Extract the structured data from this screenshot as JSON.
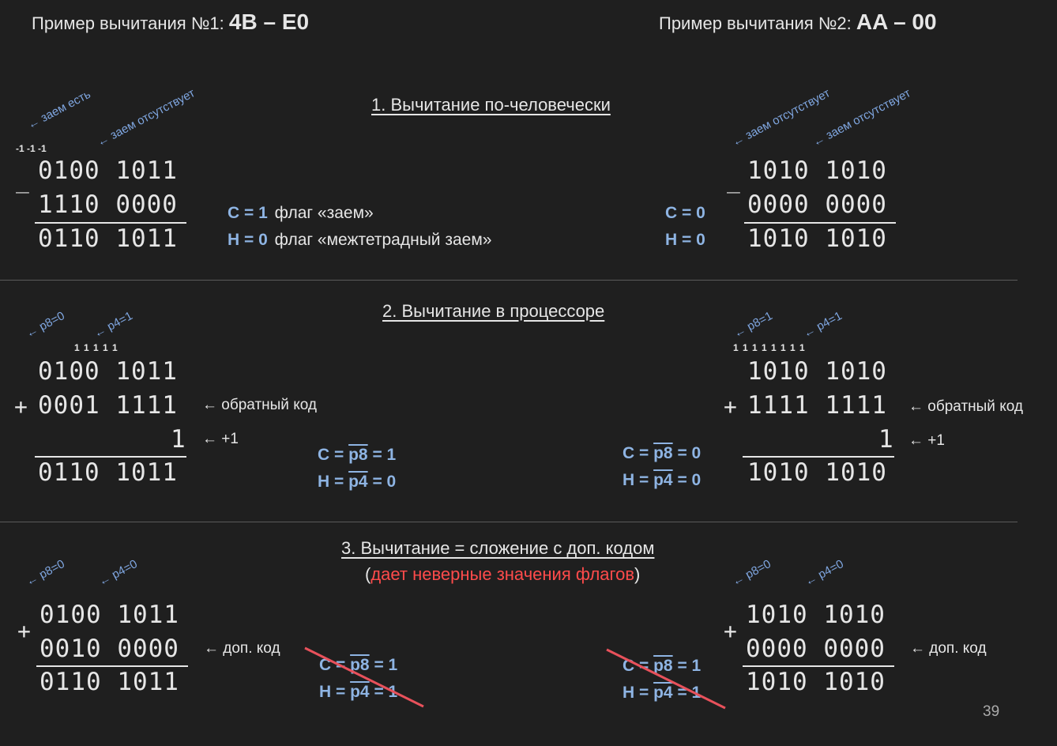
{
  "header": {
    "ex1_prefix": "Пример вычитания №1: ",
    "ex1_expr": "4B – E0",
    "ex2_prefix": "Пример вычитания №2: ",
    "ex2_expr": "AA – 00"
  },
  "section1": {
    "title": "1. Вычитание по-человечески",
    "left": {
      "ann_borrow": "← заем есть",
      "ann_noborrow": "← заем отсутствует",
      "borrow_marks": "-1  -1  -1",
      "sign": "_",
      "row1": "0100 1011",
      "row2": "1110 0000",
      "result": "0110 1011",
      "c_label": "C = 1",
      "c_text": "флаг «заем»",
      "h_label": "H = 0",
      "h_text": "флаг «межтетрадный заем»"
    },
    "right": {
      "ann1": "← заем отсутствует",
      "ann2": "← заем отсутствует",
      "sign": "_",
      "row1": "1010 1010",
      "row2": "0000 0000",
      "result": "1010 1010",
      "c_label": "C = 0",
      "h_label": "H = 0"
    }
  },
  "section2": {
    "title": "2. Вычитание в процессоре",
    "left": {
      "ann_p8": "← p8=0",
      "ann_p4": "← p4=1",
      "carries": "1 1   1 1 1",
      "row1": "0100 1011",
      "sign": "+",
      "row2": "0001 1111",
      "note_inverse": "← обратный код",
      "row3": "1",
      "note_plus1": "← +1",
      "result": "0110 1011",
      "c_pre": "C = ",
      "c_bar": "p8",
      "c_post": " = 1",
      "h_pre": "H = ",
      "h_bar": "p4",
      "h_post": " = 0"
    },
    "right": {
      "ann_p8": "← p8=1",
      "ann_p4": "← p4=1",
      "carries": "1 1 1 1 1   1 1 1",
      "row1": "1010 1010",
      "sign": "+",
      "row2": "1111 1111",
      "note_inverse": "← обратный код",
      "row3": "1",
      "note_plus1": "← +1",
      "result": "1010 1010",
      "c_pre": "C = ",
      "c_bar": "p8",
      "c_post": " = 0",
      "h_pre": "H = ",
      "h_bar": "p4",
      "h_post": " = 0"
    }
  },
  "section3": {
    "title": "3. Вычитание = сложение с доп. кодом",
    "subtitle_open": "(",
    "subtitle_red": "дает неверные значения флагов",
    "subtitle_close": ")",
    "left": {
      "ann_p8": "← p8=0",
      "ann_p4": "← p4=0",
      "sign": "+",
      "row1": "0100 1011",
      "row2": "0010 0000",
      "note_twos": "← доп. код",
      "result": "0110 1011",
      "c_pre": "C = ",
      "c_bar": "p8",
      "c_post": " = 1",
      "h_pre": "H = ",
      "h_bar": "p4",
      "h_post": " = 1"
    },
    "right": {
      "ann_p8": "← p8=0",
      "ann_p4": "← p4=0",
      "sign": "+",
      "row1": "1010 1010",
      "row2": "0000 0000",
      "note_twos": "← доп. код",
      "result": "1010 1010",
      "c_pre": "C = ",
      "c_bar": "p8",
      "c_post": " = 1",
      "h_pre": "H = ",
      "h_bar": "p4",
      "h_post": " = 1"
    }
  },
  "page_number": "39",
  "colors": {
    "background": "#1f1f1f",
    "flag_blue": "#8eb4e3",
    "annotation_blue": "#7fa6e0",
    "red": "#ff4b4b"
  }
}
